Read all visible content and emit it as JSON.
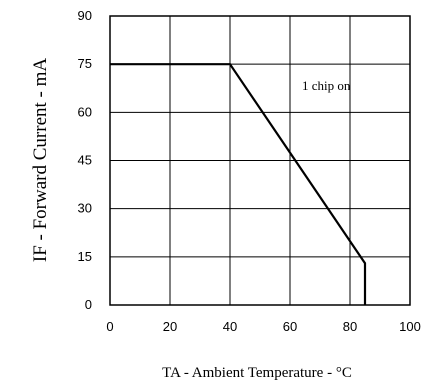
{
  "chart_data": {
    "type": "line",
    "title": "",
    "xlabel": "TA - Ambient Temperature - °C",
    "ylabel": "IF - Forward Current - mA",
    "xlim": [
      0,
      100
    ],
    "ylim": [
      0,
      90
    ],
    "x_ticks": [
      0,
      20,
      40,
      60,
      80,
      100
    ],
    "y_ticks": [
      0,
      15,
      30,
      45,
      60,
      75,
      90
    ],
    "grid": true,
    "annotations": [
      {
        "text": "1 chip on",
        "x": 64,
        "y": 67
      }
    ],
    "series": [
      {
        "x": [
          0,
          40,
          85,
          85
        ],
        "y": [
          75,
          75,
          13,
          0
        ]
      }
    ],
    "secondary_lines": [
      {
        "x": [
          80,
          80
        ],
        "y": [
          15,
          0
        ]
      }
    ]
  }
}
